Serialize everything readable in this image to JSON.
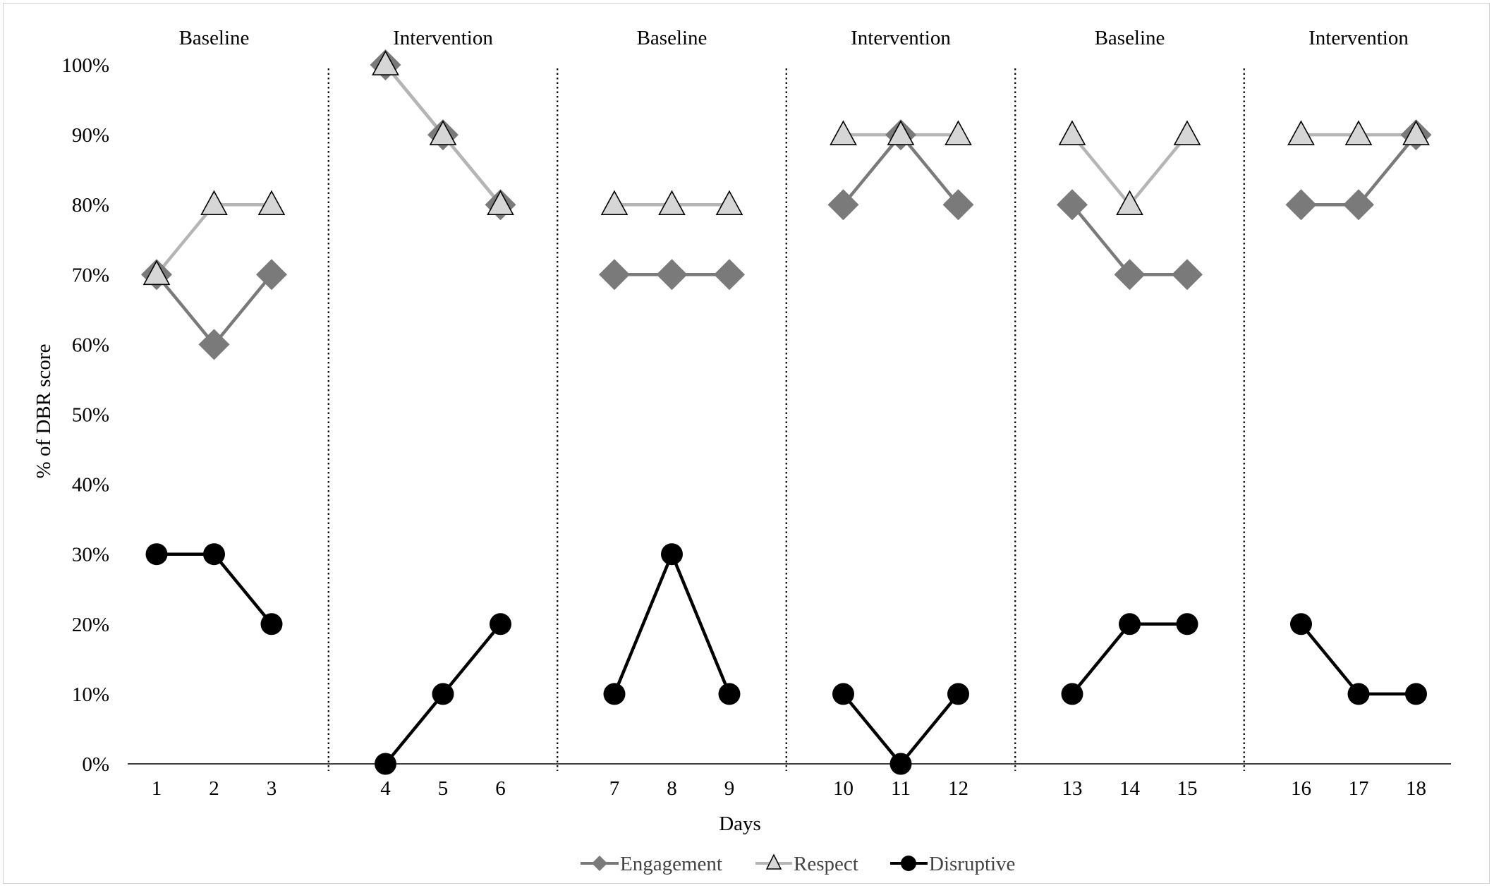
{
  "chart_data": {
    "type": "line",
    "xlabel": "Days",
    "ylabel": "% of DBR score",
    "ylim": [
      0,
      100
    ],
    "y_ticks": [
      "0%",
      "10%",
      "20%",
      "30%",
      "40%",
      "50%",
      "60%",
      "70%",
      "80%",
      "90%",
      "100%"
    ],
    "grid": false,
    "legend_position": "bottom",
    "phases": [
      {
        "label": "Baseline",
        "days": [
          1,
          2,
          3
        ]
      },
      {
        "label": "Intervention",
        "days": [
          4,
          5,
          6
        ]
      },
      {
        "label": "Baseline",
        "days": [
          7,
          8,
          9
        ]
      },
      {
        "label": "Intervention",
        "days": [
          10,
          11,
          12
        ]
      },
      {
        "label": "Baseline",
        "days": [
          13,
          14,
          15
        ]
      },
      {
        "label": "Intervention",
        "days": [
          16,
          17,
          18
        ]
      }
    ],
    "x": [
      1,
      2,
      3,
      4,
      5,
      6,
      7,
      8,
      9,
      10,
      11,
      12,
      13,
      14,
      15,
      16,
      17,
      18
    ],
    "series": [
      {
        "name": "Engagement",
        "marker": "diamond",
        "color": "#7a7a7a",
        "values": [
          70,
          60,
          70,
          100,
          90,
          80,
          70,
          70,
          70,
          80,
          90,
          80,
          80,
          70,
          70,
          80,
          80,
          90
        ]
      },
      {
        "name": "Respect",
        "marker": "triangle",
        "color": "#b5b5b5",
        "values": [
          70,
          80,
          80,
          100,
          90,
          80,
          80,
          80,
          80,
          90,
          90,
          90,
          90,
          80,
          90,
          90,
          90,
          90
        ]
      },
      {
        "name": "Disruptive",
        "marker": "circle",
        "color": "#000000",
        "values": [
          30,
          30,
          20,
          0,
          10,
          20,
          10,
          30,
          10,
          10,
          0,
          10,
          10,
          20,
          20,
          20,
          10,
          10
        ]
      }
    ]
  }
}
